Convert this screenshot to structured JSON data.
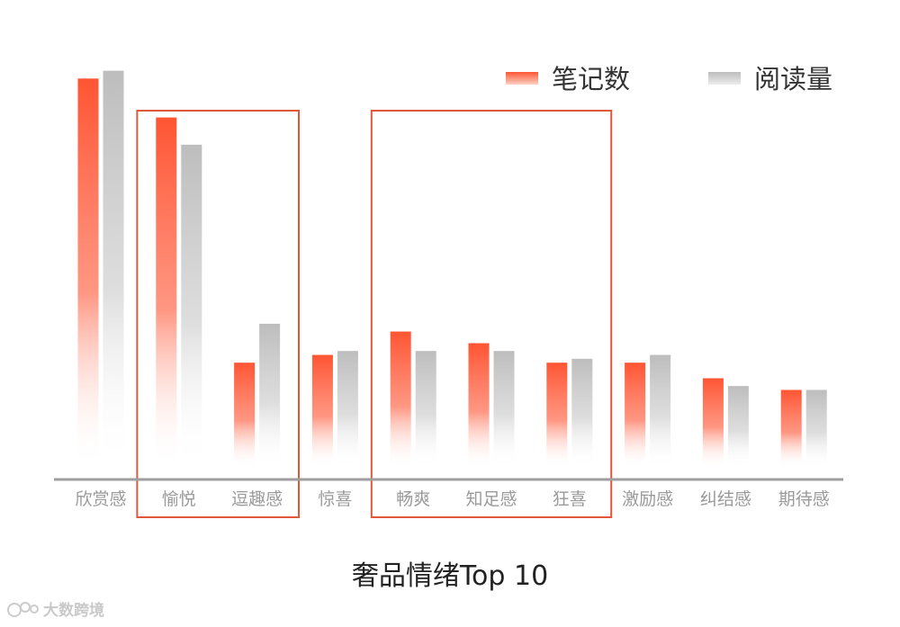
{
  "chart_data": {
    "type": "bar",
    "title": "奢品情绪Top 10",
    "categories": [
      "欣赏感",
      "愉悦",
      "逗趣感",
      "惊喜",
      "畅爽",
      "知足感",
      "狂喜",
      "激励感",
      "纠结感",
      "期待感"
    ],
    "series": [
      {
        "name": "笔记数",
        "values": [
          100,
          90,
          27,
          29,
          35,
          32,
          27,
          27,
          23,
          20
        ]
      },
      {
        "name": "阅读量",
        "values": [
          102,
          83,
          37,
          30,
          30,
          30,
          28,
          29,
          21,
          20
        ]
      }
    ],
    "ylim": [
      0,
      104
    ],
    "grid": false,
    "legend_position": "top-right",
    "highlight_groups": [
      {
        "categories": [
          "愉悦",
          "逗趣感"
        ]
      },
      {
        "categories": [
          "畅爽",
          "知足感",
          "狂喜"
        ]
      }
    ],
    "colors": {
      "series_1": "#ff5533",
      "series_2": "#bdbdbd",
      "highlight_box": "#e0573a",
      "axis": "#9e9e9e"
    }
  },
  "watermark": {
    "text": "大数跨境",
    "icon": "logo-icon"
  }
}
